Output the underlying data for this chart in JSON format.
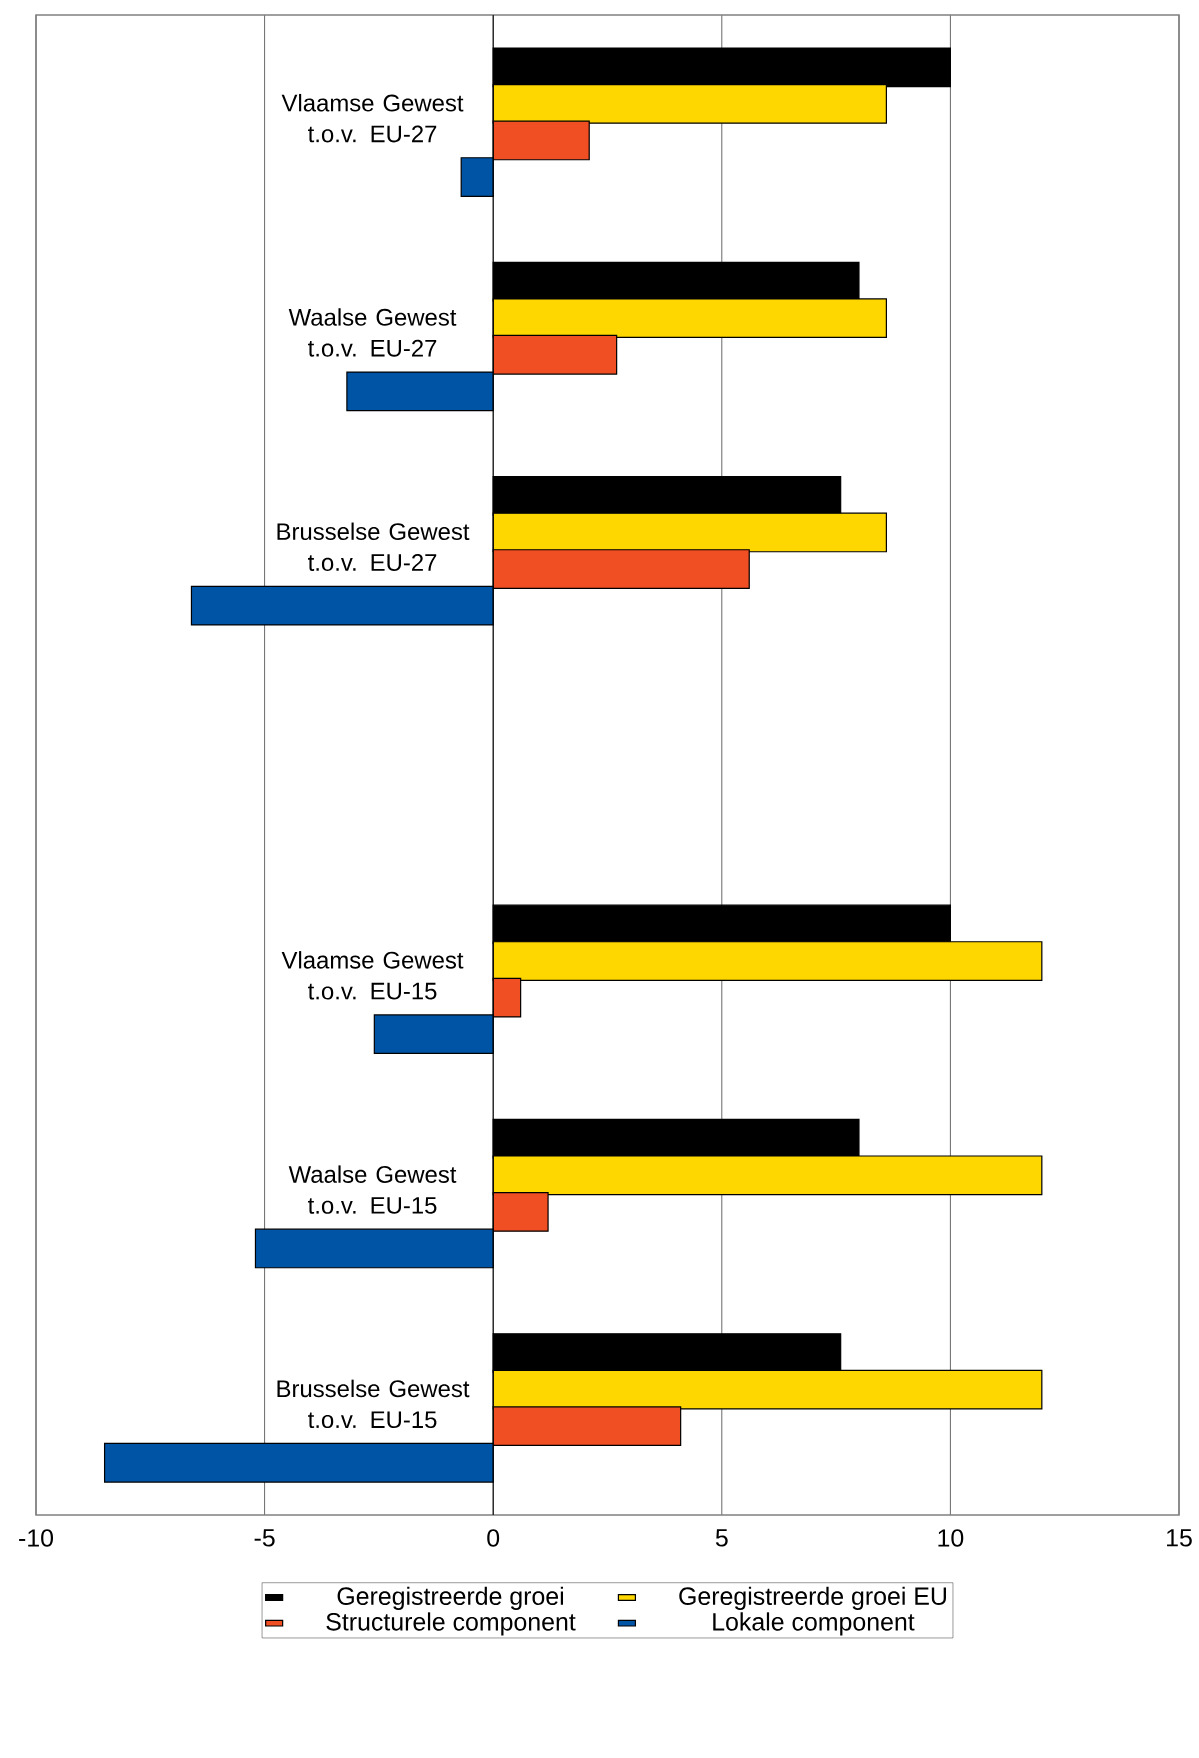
{
  "chart_data": {
    "type": "bar",
    "orientation": "horizontal",
    "categories": [
      "Vlaamse Gewest t.o.v. EU-27",
      "Waalse Gewest t.o.v. EU-27",
      "Brusselse Gewest t.o.v. EU-27",
      null,
      "Vlaamse Gewest t.o.v. EU-15",
      "Waalse Gewest t.o.v. EU-15",
      "Brusselse Gewest t.o.v. EU-15"
    ],
    "series": [
      {
        "name": "Geregistreerde groei",
        "color": "#000000",
        "values": [
          10.0,
          8.0,
          7.6,
          null,
          10.0,
          8.0,
          7.6
        ]
      },
      {
        "name": "Geregistreerde groei EU",
        "color": "#ffd700",
        "values": [
          8.6,
          8.6,
          8.6,
          null,
          12.0,
          12.0,
          12.0
        ]
      },
      {
        "name": "Structurele component",
        "color": "#f04e23",
        "values": [
          2.1,
          2.7,
          5.6,
          null,
          0.6,
          1.2,
          4.1
        ]
      },
      {
        "name": "Lokale component",
        "color": "#0054a6",
        "values": [
          -0.7,
          -3.2,
          -6.6,
          null,
          -2.6,
          -5.2,
          -8.5
        ]
      }
    ],
    "xlim": [
      -10,
      15
    ],
    "xticks": [
      -10,
      -5,
      0,
      5,
      10,
      15
    ],
    "grid": "x",
    "legend": "bottom"
  }
}
